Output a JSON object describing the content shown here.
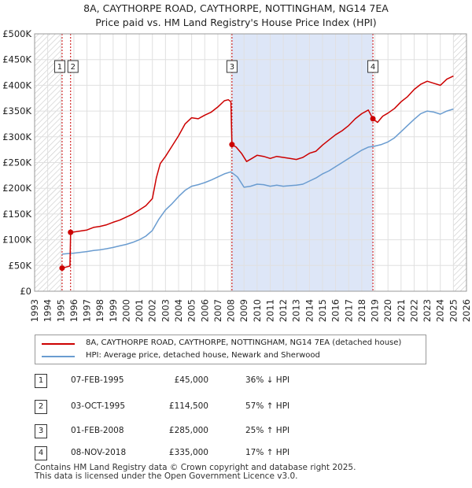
{
  "header": {
    "title_line1": "8A, CAYTHORPE ROAD, CAYTHORPE, NOTTINGHAM, NG14 7EA",
    "title_line2": "Price paid vs. HM Land Registry's House Price Index (HPI)"
  },
  "colors": {
    "property": "#cc0000",
    "hpi": "#6a9cd0",
    "shade": "#dde6f7",
    "hatch": "#c8c8c8",
    "vline": "#cc0000",
    "axis": "#333333"
  },
  "chart_data": {
    "type": "line",
    "xlim": [
      1993,
      2026
    ],
    "ylim": [
      0,
      500000
    ],
    "x_ticks": [
      "1993",
      "1994",
      "1995",
      "1996",
      "1997",
      "1998",
      "1999",
      "2000",
      "2001",
      "2002",
      "2003",
      "2004",
      "2005",
      "2006",
      "2007",
      "2008",
      "2009",
      "2010",
      "2011",
      "2012",
      "2013",
      "2014",
      "2015",
      "2016",
      "2017",
      "2018",
      "2019",
      "2020",
      "2021",
      "2022",
      "2023",
      "2024",
      "2025",
      "2026"
    ],
    "y_ticks": [
      {
        "value": 0,
        "label": "£0"
      },
      {
        "value": 50000,
        "label": "£50K"
      },
      {
        "value": 100000,
        "label": "£100K"
      },
      {
        "value": 150000,
        "label": "£150K"
      },
      {
        "value": 200000,
        "label": "£200K"
      },
      {
        "value": 250000,
        "label": "£250K"
      },
      {
        "value": 300000,
        "label": "£300K"
      },
      {
        "value": 350000,
        "label": "£350K"
      },
      {
        "value": 400000,
        "label": "£400K"
      },
      {
        "value": 450000,
        "label": "£450K"
      },
      {
        "value": 500000,
        "label": "£500K"
      }
    ],
    "hatched_ranges": [
      [
        1993.0,
        1995.1
      ],
      [
        2025.0,
        2026.0
      ]
    ],
    "shaded_ranges": [
      [
        2008.08,
        2018.85
      ]
    ],
    "series": [
      {
        "name": "8A, CAYTHORPE ROAD, CAYTHORPE, NOTTINGHAM, NG14 7EA (detached house)",
        "color": "#cc0000",
        "points": [
          [
            1995.1,
            45000
          ],
          [
            1995.4,
            47000
          ],
          [
            1995.7,
            49000
          ],
          [
            1995.75,
            114500
          ],
          [
            1996.0,
            115000
          ],
          [
            1996.5,
            117000
          ],
          [
            1997.0,
            119000
          ],
          [
            1997.5,
            124000
          ],
          [
            1998.0,
            126000
          ],
          [
            1998.5,
            129000
          ],
          [
            1999.0,
            134000
          ],
          [
            1999.5,
            138000
          ],
          [
            2000.0,
            144000
          ],
          [
            2000.5,
            150000
          ],
          [
            2001.0,
            158000
          ],
          [
            2001.5,
            166000
          ],
          [
            2002.0,
            180000
          ],
          [
            2002.3,
            220000
          ],
          [
            2002.6,
            248000
          ],
          [
            2003.0,
            262000
          ],
          [
            2003.5,
            282000
          ],
          [
            2004.0,
            302000
          ],
          [
            2004.5,
            325000
          ],
          [
            2005.0,
            337000
          ],
          [
            2005.5,
            335000
          ],
          [
            2006.0,
            342000
          ],
          [
            2006.5,
            348000
          ],
          [
            2007.0,
            358000
          ],
          [
            2007.5,
            370000
          ],
          [
            2007.8,
            372000
          ],
          [
            2008.0,
            368000
          ],
          [
            2008.08,
            285000
          ],
          [
            2008.4,
            280000
          ],
          [
            2008.8,
            268000
          ],
          [
            2009.2,
            252000
          ],
          [
            2009.6,
            258000
          ],
          [
            2010.0,
            264000
          ],
          [
            2010.5,
            262000
          ],
          [
            2011.0,
            258000
          ],
          [
            2011.5,
            262000
          ],
          [
            2012.0,
            260000
          ],
          [
            2012.5,
            258000
          ],
          [
            2013.0,
            256000
          ],
          [
            2013.5,
            260000
          ],
          [
            2014.0,
            268000
          ],
          [
            2014.5,
            272000
          ],
          [
            2015.0,
            284000
          ],
          [
            2015.5,
            294000
          ],
          [
            2016.0,
            304000
          ],
          [
            2016.5,
            312000
          ],
          [
            2017.0,
            322000
          ],
          [
            2017.5,
            335000
          ],
          [
            2018.0,
            345000
          ],
          [
            2018.5,
            352000
          ],
          [
            2018.85,
            335000
          ],
          [
            2019.2,
            328000
          ],
          [
            2019.6,
            340000
          ],
          [
            2020.0,
            346000
          ],
          [
            2020.5,
            355000
          ],
          [
            2021.0,
            368000
          ],
          [
            2021.5,
            378000
          ],
          [
            2022.0,
            392000
          ],
          [
            2022.5,
            402000
          ],
          [
            2023.0,
            408000
          ],
          [
            2023.5,
            404000
          ],
          [
            2024.0,
            400000
          ],
          [
            2024.5,
            412000
          ],
          [
            2025.0,
            418000
          ]
        ]
      },
      {
        "name": "HPI: Average price, detached house, Newark and Sherwood",
        "color": "#6a9cd0",
        "points": [
          [
            1995.1,
            72000
          ],
          [
            1995.5,
            73000
          ],
          [
            1996.0,
            74000
          ],
          [
            1996.5,
            75500
          ],
          [
            1997.0,
            77000
          ],
          [
            1997.5,
            79000
          ],
          [
            1998.0,
            80500
          ],
          [
            1998.5,
            82500
          ],
          [
            1999.0,
            85000
          ],
          [
            1999.5,
            88000
          ],
          [
            2000.0,
            91000
          ],
          [
            2000.5,
            95000
          ],
          [
            2001.0,
            100000
          ],
          [
            2001.5,
            107000
          ],
          [
            2002.0,
            118000
          ],
          [
            2002.5,
            140000
          ],
          [
            2003.0,
            158000
          ],
          [
            2003.5,
            170000
          ],
          [
            2004.0,
            184000
          ],
          [
            2004.5,
            196000
          ],
          [
            2005.0,
            204000
          ],
          [
            2005.5,
            207000
          ],
          [
            2006.0,
            211000
          ],
          [
            2006.5,
            216000
          ],
          [
            2007.0,
            222000
          ],
          [
            2007.5,
            228000
          ],
          [
            2008.0,
            232000
          ],
          [
            2008.5,
            222000
          ],
          [
            2009.0,
            202000
          ],
          [
            2009.5,
            204000
          ],
          [
            2010.0,
            208000
          ],
          [
            2010.5,
            207000
          ],
          [
            2011.0,
            204000
          ],
          [
            2011.5,
            206000
          ],
          [
            2012.0,
            204000
          ],
          [
            2012.5,
            205000
          ],
          [
            2013.0,
            206000
          ],
          [
            2013.5,
            208000
          ],
          [
            2014.0,
            214000
          ],
          [
            2014.5,
            220000
          ],
          [
            2015.0,
            228000
          ],
          [
            2015.5,
            234000
          ],
          [
            2016.0,
            242000
          ],
          [
            2016.5,
            250000
          ],
          [
            2017.0,
            258000
          ],
          [
            2017.5,
            266000
          ],
          [
            2018.0,
            274000
          ],
          [
            2018.5,
            280000
          ],
          [
            2019.0,
            282000
          ],
          [
            2019.5,
            285000
          ],
          [
            2020.0,
            290000
          ],
          [
            2020.5,
            298000
          ],
          [
            2021.0,
            310000
          ],
          [
            2021.5,
            322000
          ],
          [
            2022.0,
            334000
          ],
          [
            2022.5,
            345000
          ],
          [
            2023.0,
            350000
          ],
          [
            2023.5,
            348000
          ],
          [
            2024.0,
            344000
          ],
          [
            2024.5,
            350000
          ],
          [
            2025.0,
            354000
          ]
        ]
      }
    ],
    "sales": [
      {
        "num": "1",
        "date": "07-FEB-1995",
        "x": 1995.1,
        "price_value": 45000,
        "price": "£45,000",
        "hpi": "36% ↓ HPI"
      },
      {
        "num": "2",
        "date": "03-OCT-1995",
        "x": 1995.75,
        "price_value": 114500,
        "price": "£114,500",
        "hpi": "57% ↑ HPI"
      },
      {
        "num": "3",
        "date": "01-FEB-2008",
        "x": 2008.08,
        "price_value": 285000,
        "price": "£285,000",
        "hpi": "25% ↑ HPI"
      },
      {
        "num": "4",
        "date": "08-NOV-2018",
        "x": 2018.85,
        "price_value": 335000,
        "price": "£335,000",
        "hpi": "17% ↑ HPI"
      }
    ]
  },
  "legend": {
    "property_label": "8A, CAYTHORPE ROAD, CAYTHORPE, NOTTINGHAM, NG14 7EA (detached house)",
    "hpi_label": "HPI: Average price, detached house, Newark and Sherwood"
  },
  "footer": {
    "line1": "Contains HM Land Registry data © Crown copyright and database right 2025.",
    "line2": "This data is licensed under the Open Government Licence v3.0."
  }
}
